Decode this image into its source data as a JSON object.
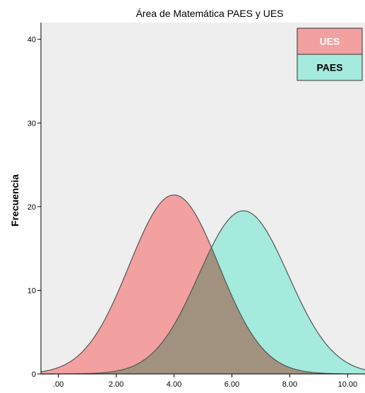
{
  "chart_data": {
    "type": "area",
    "title": "Área de Matemática PAES y UES",
    "xlabel": "",
    "ylabel": "Frecuencia",
    "xlim": [
      -0.6,
      10.6
    ],
    "ylim": [
      0,
      42
    ],
    "x_ticks": [
      0,
      2,
      4,
      6,
      8,
      10
    ],
    "x_tick_labels": [
      ".00",
      "2.00",
      "4.00",
      "6.00",
      "8.00",
      "10.00"
    ],
    "y_ticks": [
      0,
      10,
      20,
      30,
      40
    ],
    "y_tick_labels": [
      "0",
      "10",
      "20",
      "30",
      "40"
    ],
    "grid": false,
    "legend_position": "top-right",
    "background_color": "#eeeeee",
    "overlap_color": "#a0927e",
    "series": [
      {
        "name": "UES",
        "distribution": "normal",
        "mean": 4.0,
        "sd": 1.55,
        "peak": 21.4,
        "color": "#f2a0a0"
      },
      {
        "name": "PAES",
        "distribution": "normal",
        "mean": 6.4,
        "sd": 1.55,
        "peak": 19.5,
        "color": "#a4eadd"
      }
    ]
  }
}
